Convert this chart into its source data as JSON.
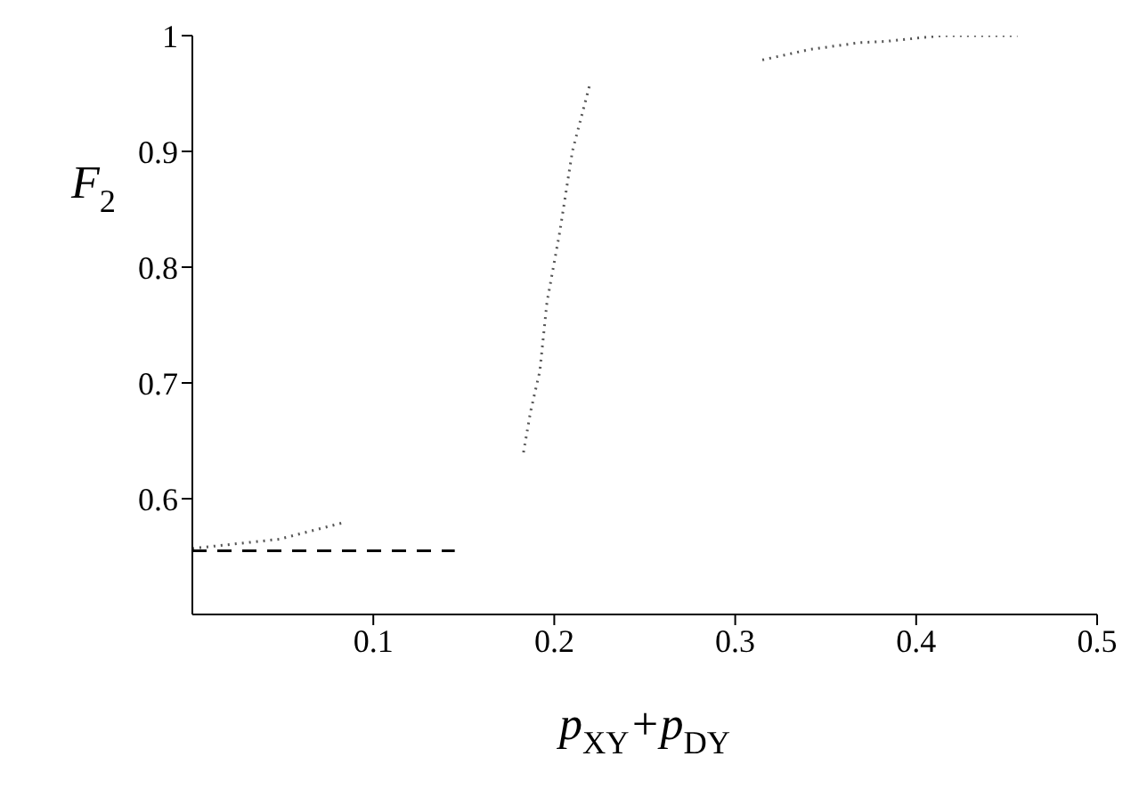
{
  "chart_data": {
    "type": "line",
    "xlabel": "p$_{XY}$+p$_{DY}$",
    "ylabel": "F$_{2}$",
    "xlim": [
      0,
      0.5
    ],
    "ylim": [
      0.5,
      1
    ],
    "xticks": [
      0.1,
      0.2,
      0.3,
      0.4,
      0.5
    ],
    "yticks": [
      0.6,
      0.7,
      0.8,
      0.9,
      1
    ],
    "grid": false,
    "legend": false,
    "marker": "none",
    "series": [
      {
        "color": "#555555",
        "line_style": "dotted",
        "x": [
          0,
          0.048,
          0.085,
          null,
          0.183,
          0.187,
          0.192,
          0.196,
          0.203,
          0.21,
          0.22,
          null,
          0.315,
          0.341,
          0.369,
          0.383,
          0.414,
          0.442,
          0.456
        ],
        "values": [
          0.557,
          0.565,
          0.58,
          null,
          0.64,
          0.676,
          0.71,
          0.77,
          0.83,
          0.9,
          0.96,
          null,
          0.979,
          0.988,
          0.994,
          0.995,
          1.0,
          1.0,
          1.0
        ]
      },
      {
        "color": "#000000",
        "line_style": "dashed",
        "x": [
          0,
          0.145
        ],
        "values": [
          0.555,
          0.555
        ]
      }
    ]
  }
}
